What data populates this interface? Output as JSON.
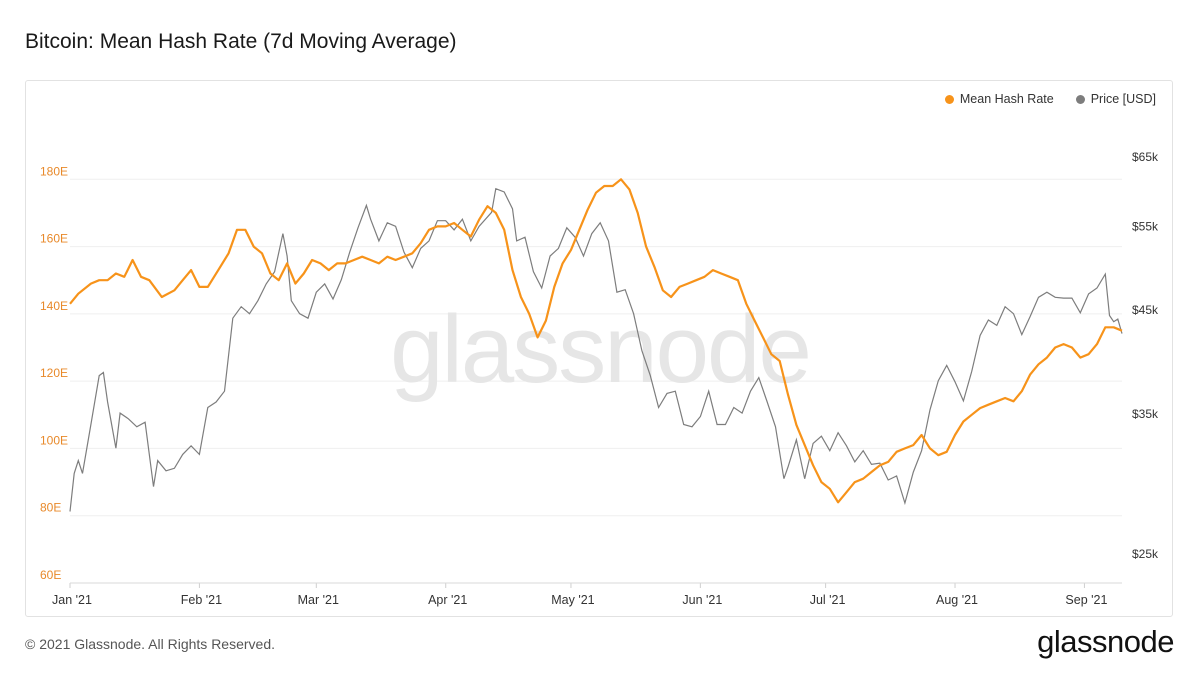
{
  "title": "Bitcoin: Mean Hash Rate (7d Moving Average)",
  "footer": {
    "copyright": "© 2021 Glassnode. All Rights Reserved.",
    "logo": "glassnode"
  },
  "watermark": "glassnode",
  "colors": {
    "hash": "#f7931a",
    "price": "#7d7d7d",
    "left_axis": "#e8892a",
    "grid": "#efefef"
  },
  "chart_data": {
    "type": "line",
    "title": "Bitcoin: Mean Hash Rate (7d Moving Average)",
    "x_start": "2021-01-01",
    "x_end": "2021-09-10",
    "x_ticks": [
      "Jan '21",
      "Feb '21",
      "Mar '21",
      "Apr '21",
      "May '21",
      "Jun '21",
      "Jul '21",
      "Aug '21",
      "Sep '21"
    ],
    "y_left": {
      "ticks": [
        "60E",
        "80E",
        "100E",
        "120E",
        "140E",
        "160E",
        "180E"
      ],
      "range": [
        60,
        200
      ],
      "unit": "EH/s"
    },
    "y_right": {
      "ticks": [
        "$25k",
        "$35k",
        "$45k",
        "$55k",
        "$65k"
      ],
      "range": [
        25000,
        65000
      ],
      "unit": "USD",
      "scale": "log"
    },
    "legend": {
      "placement": "top-right",
      "items": [
        "Mean Hash Rate",
        "Price [USD]"
      ]
    },
    "series": [
      {
        "name": "Mean Hash Rate",
        "axis": "left",
        "points": [
          [
            "2021-01-01",
            143
          ],
          [
            "2021-01-03",
            146
          ],
          [
            "2021-01-06",
            149
          ],
          [
            "2021-01-08",
            150
          ],
          [
            "2021-01-10",
            150
          ],
          [
            "2021-01-12",
            152
          ],
          [
            "2021-01-14",
            151
          ],
          [
            "2021-01-16",
            156
          ],
          [
            "2021-01-18",
            151
          ],
          [
            "2021-01-20",
            150
          ],
          [
            "2021-01-23",
            145
          ],
          [
            "2021-01-26",
            147
          ],
          [
            "2021-01-28",
            150
          ],
          [
            "2021-01-30",
            153
          ],
          [
            "2021-02-01",
            148
          ],
          [
            "2021-02-03",
            148
          ],
          [
            "2021-02-06",
            154
          ],
          [
            "2021-02-08",
            158
          ],
          [
            "2021-02-10",
            165
          ],
          [
            "2021-02-12",
            165
          ],
          [
            "2021-02-14",
            160
          ],
          [
            "2021-02-16",
            158
          ],
          [
            "2021-02-18",
            152
          ],
          [
            "2021-02-20",
            150
          ],
          [
            "2021-02-22",
            155
          ],
          [
            "2021-02-24",
            149
          ],
          [
            "2021-02-26",
            152
          ],
          [
            "2021-02-28",
            156
          ],
          [
            "2021-03-02",
            155
          ],
          [
            "2021-03-04",
            153
          ],
          [
            "2021-03-06",
            155
          ],
          [
            "2021-03-08",
            155
          ],
          [
            "2021-03-10",
            156
          ],
          [
            "2021-03-12",
            157
          ],
          [
            "2021-03-14",
            156
          ],
          [
            "2021-03-16",
            155
          ],
          [
            "2021-03-18",
            157
          ],
          [
            "2021-03-20",
            156
          ],
          [
            "2021-03-22",
            157
          ],
          [
            "2021-03-24",
            158
          ],
          [
            "2021-03-26",
            161
          ],
          [
            "2021-03-28",
            165
          ],
          [
            "2021-03-30",
            166
          ],
          [
            "2021-04-01",
            166
          ],
          [
            "2021-04-03",
            167
          ],
          [
            "2021-04-05",
            165
          ],
          [
            "2021-04-07",
            163
          ],
          [
            "2021-04-09",
            168
          ],
          [
            "2021-04-11",
            172
          ],
          [
            "2021-04-13",
            170
          ],
          [
            "2021-04-15",
            165
          ],
          [
            "2021-04-17",
            153
          ],
          [
            "2021-04-19",
            145
          ],
          [
            "2021-04-21",
            140
          ],
          [
            "2021-04-23",
            133
          ],
          [
            "2021-04-25",
            138
          ],
          [
            "2021-04-27",
            148
          ],
          [
            "2021-04-29",
            155
          ],
          [
            "2021-05-01",
            159
          ],
          [
            "2021-05-03",
            165
          ],
          [
            "2021-05-05",
            171
          ],
          [
            "2021-05-07",
            176
          ],
          [
            "2021-05-09",
            178
          ],
          [
            "2021-05-11",
            178
          ],
          [
            "2021-05-13",
            180
          ],
          [
            "2021-05-15",
            177
          ],
          [
            "2021-05-17",
            170
          ],
          [
            "2021-05-19",
            160
          ],
          [
            "2021-05-21",
            154
          ],
          [
            "2021-05-23",
            147
          ],
          [
            "2021-05-25",
            145
          ],
          [
            "2021-05-27",
            148
          ],
          [
            "2021-05-29",
            149
          ],
          [
            "2021-05-31",
            150
          ],
          [
            "2021-06-02",
            151
          ],
          [
            "2021-06-04",
            153
          ],
          [
            "2021-06-06",
            152
          ],
          [
            "2021-06-08",
            151
          ],
          [
            "2021-06-10",
            150
          ],
          [
            "2021-06-12",
            143
          ],
          [
            "2021-06-14",
            138
          ],
          [
            "2021-06-16",
            133
          ],
          [
            "2021-06-18",
            128
          ],
          [
            "2021-06-20",
            126
          ],
          [
            "2021-06-22",
            116
          ],
          [
            "2021-06-24",
            107
          ],
          [
            "2021-06-26",
            101
          ],
          [
            "2021-06-28",
            95
          ],
          [
            "2021-06-30",
            90
          ],
          [
            "2021-07-02",
            88
          ],
          [
            "2021-07-04",
            84
          ],
          [
            "2021-07-06",
            87
          ],
          [
            "2021-07-08",
            90
          ],
          [
            "2021-07-10",
            91
          ],
          [
            "2021-07-12",
            93
          ],
          [
            "2021-07-14",
            95
          ],
          [
            "2021-07-16",
            96
          ],
          [
            "2021-07-18",
            99
          ],
          [
            "2021-07-20",
            100
          ],
          [
            "2021-07-22",
            101
          ],
          [
            "2021-07-24",
            104
          ],
          [
            "2021-07-26",
            100
          ],
          [
            "2021-07-28",
            98
          ],
          [
            "2021-07-30",
            99
          ],
          [
            "2021-08-01",
            104
          ],
          [
            "2021-08-03",
            108
          ],
          [
            "2021-08-05",
            110
          ],
          [
            "2021-08-07",
            112
          ],
          [
            "2021-08-09",
            113
          ],
          [
            "2021-08-11",
            114
          ],
          [
            "2021-08-13",
            115
          ],
          [
            "2021-08-15",
            114
          ],
          [
            "2021-08-17",
            117
          ],
          [
            "2021-08-19",
            122
          ],
          [
            "2021-08-21",
            125
          ],
          [
            "2021-08-23",
            127
          ],
          [
            "2021-08-25",
            130
          ],
          [
            "2021-08-27",
            131
          ],
          [
            "2021-08-29",
            130
          ],
          [
            "2021-08-31",
            127
          ],
          [
            "2021-09-02",
            128
          ],
          [
            "2021-09-04",
            131
          ],
          [
            "2021-09-06",
            136
          ],
          [
            "2021-09-08",
            136
          ],
          [
            "2021-09-10",
            135
          ]
        ]
      },
      {
        "name": "Price [USD]",
        "axis": "right",
        "points": [
          [
            "2021-01-01",
            29200
          ],
          [
            "2021-01-02",
            32000
          ],
          [
            "2021-01-03",
            33000
          ],
          [
            "2021-01-04",
            32000
          ],
          [
            "2021-01-06",
            36000
          ],
          [
            "2021-01-08",
            40500
          ],
          [
            "2021-01-09",
            40800
          ],
          [
            "2021-01-10",
            38000
          ],
          [
            "2021-01-12",
            34000
          ],
          [
            "2021-01-13",
            37000
          ],
          [
            "2021-01-15",
            36500
          ],
          [
            "2021-01-17",
            35800
          ],
          [
            "2021-01-19",
            36200
          ],
          [
            "2021-01-21",
            31000
          ],
          [
            "2021-01-22",
            33000
          ],
          [
            "2021-01-24",
            32200
          ],
          [
            "2021-01-26",
            32400
          ],
          [
            "2021-01-28",
            33500
          ],
          [
            "2021-01-30",
            34200
          ],
          [
            "2021-02-01",
            33500
          ],
          [
            "2021-02-03",
            37500
          ],
          [
            "2021-02-05",
            38000
          ],
          [
            "2021-02-07",
            39000
          ],
          [
            "2021-02-09",
            46500
          ],
          [
            "2021-02-11",
            47800
          ],
          [
            "2021-02-13",
            47000
          ],
          [
            "2021-02-15",
            48500
          ],
          [
            "2021-02-17",
            50500
          ],
          [
            "2021-02-19",
            52000
          ],
          [
            "2021-02-21",
            57000
          ],
          [
            "2021-02-22",
            54000
          ],
          [
            "2021-02-23",
            48500
          ],
          [
            "2021-02-25",
            47000
          ],
          [
            "2021-02-27",
            46500
          ],
          [
            "2021-03-01",
            49500
          ],
          [
            "2021-03-03",
            50500
          ],
          [
            "2021-03-05",
            48700
          ],
          [
            "2021-03-07",
            51000
          ],
          [
            "2021-03-09",
            54500
          ],
          [
            "2021-03-11",
            57800
          ],
          [
            "2021-03-13",
            61000
          ],
          [
            "2021-03-14",
            59000
          ],
          [
            "2021-03-16",
            56000
          ],
          [
            "2021-03-18",
            58500
          ],
          [
            "2021-03-20",
            58000
          ],
          [
            "2021-03-22",
            54500
          ],
          [
            "2021-03-24",
            52500
          ],
          [
            "2021-03-26",
            55000
          ],
          [
            "2021-03-28",
            56000
          ],
          [
            "2021-03-30",
            58800
          ],
          [
            "2021-04-01",
            58800
          ],
          [
            "2021-04-03",
            57500
          ],
          [
            "2021-04-05",
            59000
          ],
          [
            "2021-04-07",
            56000
          ],
          [
            "2021-04-09",
            58000
          ],
          [
            "2021-04-12",
            60000
          ],
          [
            "2021-04-13",
            63500
          ],
          [
            "2021-04-15",
            63000
          ],
          [
            "2021-04-17",
            60500
          ],
          [
            "2021-04-18",
            56000
          ],
          [
            "2021-04-20",
            56500
          ],
          [
            "2021-04-22",
            52000
          ],
          [
            "2021-04-24",
            50000
          ],
          [
            "2021-04-26",
            54000
          ],
          [
            "2021-04-28",
            55000
          ],
          [
            "2021-04-30",
            57800
          ],
          [
            "2021-05-02",
            56500
          ],
          [
            "2021-05-04",
            54000
          ],
          [
            "2021-05-06",
            57000
          ],
          [
            "2021-05-08",
            58500
          ],
          [
            "2021-05-10",
            56000
          ],
          [
            "2021-05-12",
            49500
          ],
          [
            "2021-05-14",
            49800
          ],
          [
            "2021-05-16",
            47000
          ],
          [
            "2021-05-18",
            43000
          ],
          [
            "2021-05-20",
            40500
          ],
          [
            "2021-05-22",
            37500
          ],
          [
            "2021-05-24",
            38800
          ],
          [
            "2021-05-26",
            39000
          ],
          [
            "2021-05-28",
            36000
          ],
          [
            "2021-05-30",
            35800
          ],
          [
            "2021-06-01",
            36700
          ],
          [
            "2021-06-03",
            39000
          ],
          [
            "2021-06-05",
            36000
          ],
          [
            "2021-06-07",
            36000
          ],
          [
            "2021-06-09",
            37500
          ],
          [
            "2021-06-11",
            37000
          ],
          [
            "2021-06-13",
            39000
          ],
          [
            "2021-06-15",
            40300
          ],
          [
            "2021-06-17",
            38000
          ],
          [
            "2021-06-19",
            35800
          ],
          [
            "2021-06-21",
            31600
          ],
          [
            "2021-06-22",
            32500
          ],
          [
            "2021-06-24",
            34700
          ],
          [
            "2021-06-26",
            31600
          ],
          [
            "2021-06-28",
            34400
          ],
          [
            "2021-06-30",
            35000
          ],
          [
            "2021-07-02",
            33800
          ],
          [
            "2021-07-04",
            35300
          ],
          [
            "2021-07-06",
            34200
          ],
          [
            "2021-07-08",
            32900
          ],
          [
            "2021-07-10",
            33800
          ],
          [
            "2021-07-12",
            32700
          ],
          [
            "2021-07-14",
            32800
          ],
          [
            "2021-07-16",
            31500
          ],
          [
            "2021-07-18",
            31800
          ],
          [
            "2021-07-20",
            29800
          ],
          [
            "2021-07-22",
            32100
          ],
          [
            "2021-07-24",
            33800
          ],
          [
            "2021-07-26",
            37300
          ],
          [
            "2021-07-28",
            40000
          ],
          [
            "2021-07-30",
            41500
          ],
          [
            "2021-08-01",
            39900
          ],
          [
            "2021-08-03",
            38100
          ],
          [
            "2021-08-05",
            40900
          ],
          [
            "2021-08-07",
            44600
          ],
          [
            "2021-08-09",
            46300
          ],
          [
            "2021-08-11",
            45700
          ],
          [
            "2021-08-13",
            47800
          ],
          [
            "2021-08-15",
            47000
          ],
          [
            "2021-08-17",
            44700
          ],
          [
            "2021-08-19",
            46700
          ],
          [
            "2021-08-21",
            48900
          ],
          [
            "2021-08-23",
            49500
          ],
          [
            "2021-08-25",
            48900
          ],
          [
            "2021-08-27",
            48800
          ],
          [
            "2021-08-29",
            48800
          ],
          [
            "2021-08-31",
            47100
          ],
          [
            "2021-09-02",
            49300
          ],
          [
            "2021-09-04",
            50000
          ],
          [
            "2021-09-06",
            51700
          ],
          [
            "2021-09-07",
            46800
          ],
          [
            "2021-09-08",
            46100
          ],
          [
            "2021-09-09",
            46400
          ],
          [
            "2021-09-10",
            44800
          ]
        ]
      }
    ]
  }
}
